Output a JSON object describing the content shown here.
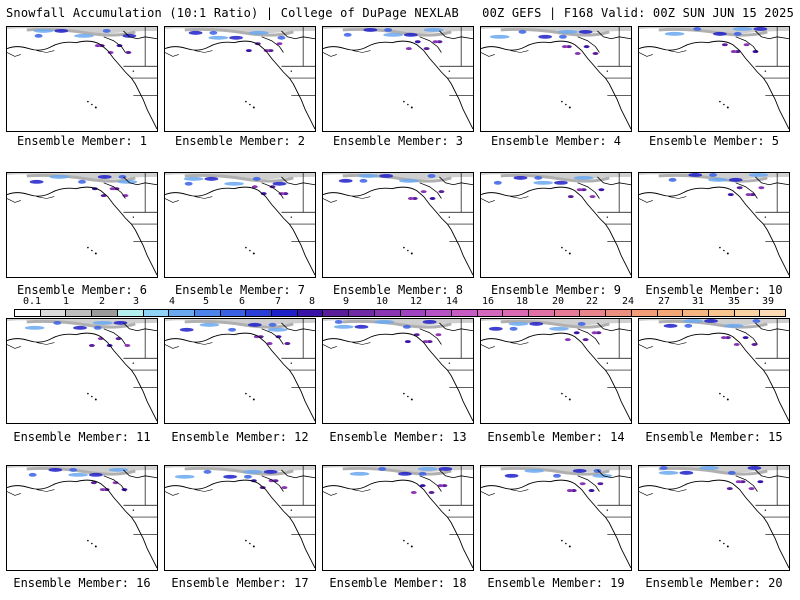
{
  "header": {
    "left": "Snowfall Accumulation (10:1 Ratio) | College of DuPage NEXLAB",
    "right": "00Z GEFS | F168 Valid: 00Z SUN JUN 15 2025"
  },
  "legend": {
    "labels": [
      "0.1",
      "1",
      "2",
      "3",
      "4",
      "5",
      "6",
      "7",
      "8",
      "9",
      "10",
      "12",
      "14",
      "16",
      "18",
      "20",
      "22",
      "24",
      "27",
      "31",
      "35",
      "39"
    ],
    "colors": [
      "#ffffff",
      "#dcdcdc",
      "#bebebe",
      "#9a9a9a",
      "#b4f0f0",
      "#8fd4f4",
      "#6aa8f0",
      "#4d84ec",
      "#3a60e6",
      "#2a3fd8",
      "#1e20c8",
      "#3a14a8",
      "#5a1e9a",
      "#702aa6",
      "#8a36b4",
      "#a043c0",
      "#b452c6",
      "#c65cc4",
      "#d468be",
      "#dc6ab2",
      "#e070a6",
      "#e67a98",
      "#ea848c",
      "#ee9080",
      "#f29c78",
      "#f4a878",
      "#f6b682",
      "#f8c490",
      "#fad2a4",
      "#fcdcb4"
    ]
  },
  "panels": [
    {
      "label": "Ensemble Member: 1",
      "member": 1
    },
    {
      "label": "Ensemble Member: 2",
      "member": 2
    },
    {
      "label": "Ensemble Member: 3",
      "member": 3
    },
    {
      "label": "Ensemble Member: 4",
      "member": 4
    },
    {
      "label": "Ensemble Member: 5",
      "member": 5
    },
    {
      "label": "Ensemble Member: 6",
      "member": 6
    },
    {
      "label": "Ensemble Member: 7",
      "member": 7
    },
    {
      "label": "Ensemble Member: 8",
      "member": 8
    },
    {
      "label": "Ensemble Member: 9",
      "member": 9
    },
    {
      "label": "Ensemble Member: 10",
      "member": 10
    },
    {
      "label": "Ensemble Member: 11",
      "member": 11
    },
    {
      "label": "Ensemble Member: 12",
      "member": 12
    },
    {
      "label": "Ensemble Member: 13",
      "member": 13
    },
    {
      "label": "Ensemble Member: 14",
      "member": 14
    },
    {
      "label": "Ensemble Member: 15",
      "member": 15
    },
    {
      "label": "Ensemble Member: 16",
      "member": 16
    },
    {
      "label": "Ensemble Member: 17",
      "member": 17
    },
    {
      "label": "Ensemble Member: 18",
      "member": 18
    },
    {
      "label": "Ensemble Member: 19",
      "member": 19
    },
    {
      "label": "Ensemble Member: 20",
      "member": 20
    }
  ]
}
